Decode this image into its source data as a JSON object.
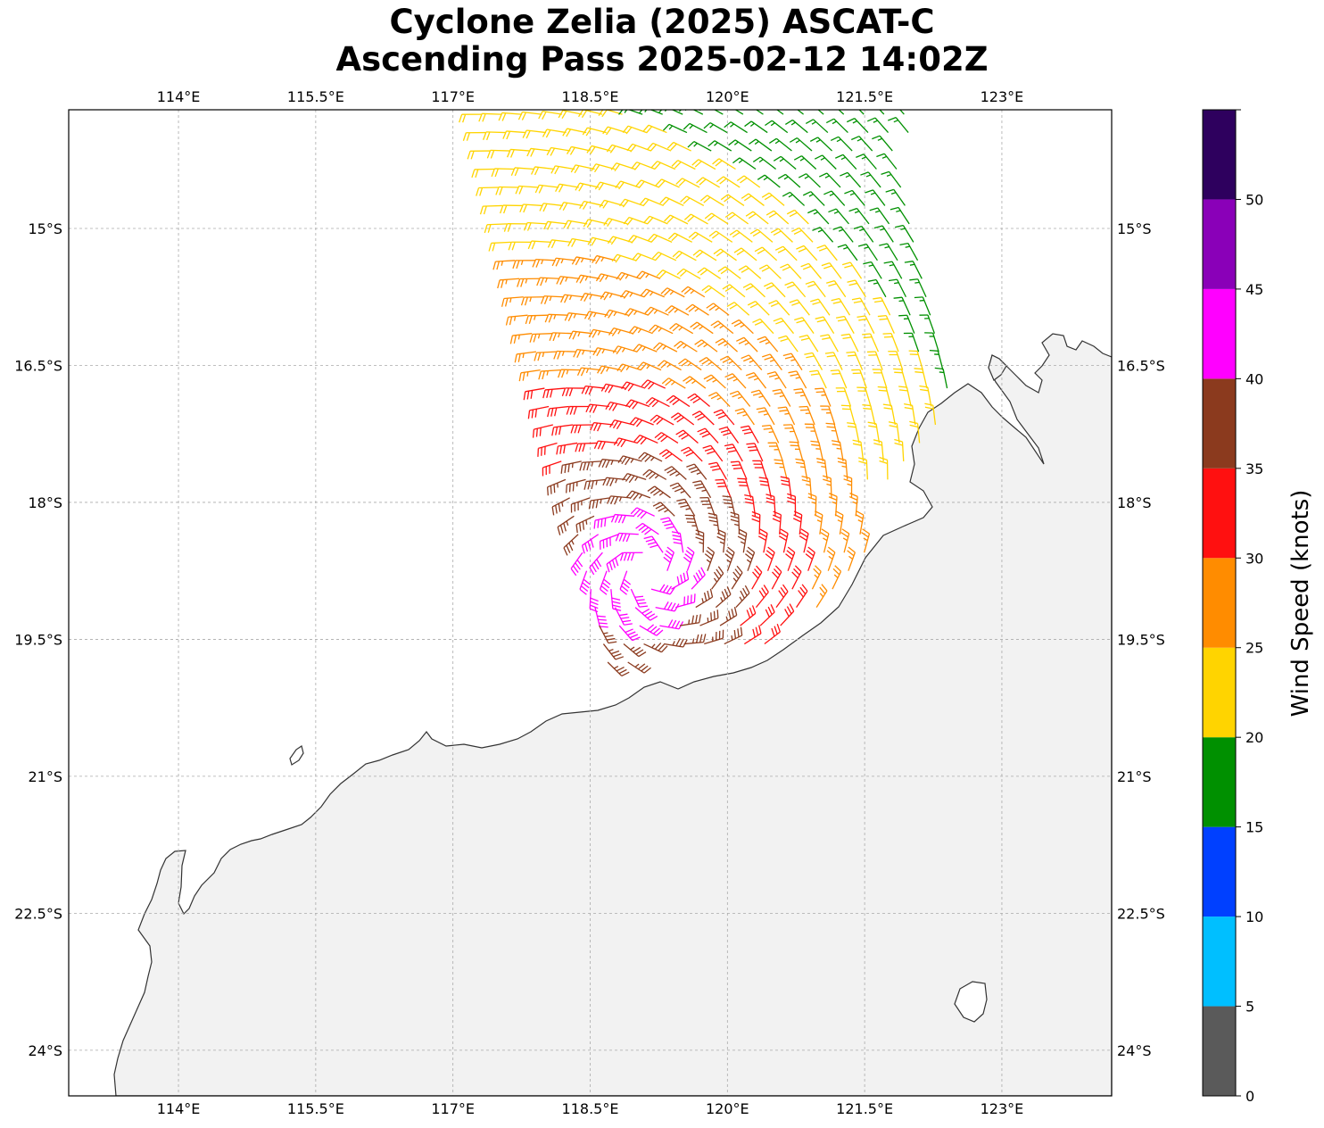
{
  "map": {
    "title_line1": "Cyclone Zelia (2025) ASCAT-C",
    "title_line2": "Ascending Pass 2025-02-12 14:02Z",
    "lon_range": [
      112.8,
      124.2
    ],
    "lat_range": [
      -24.5,
      -13.7
    ],
    "lon_ticks": [
      {
        "value": 114.0,
        "label": "114°E"
      },
      {
        "value": 115.5,
        "label": "115.5°E"
      },
      {
        "value": 117.0,
        "label": "117°E"
      },
      {
        "value": 118.5,
        "label": "118.5°E"
      },
      {
        "value": 120.0,
        "label": "120°E"
      },
      {
        "value": 121.5,
        "label": "121.5°E"
      },
      {
        "value": 123.0,
        "label": "123°E"
      }
    ],
    "lat_ticks": [
      {
        "value": -15.0,
        "label": "15°S"
      },
      {
        "value": -16.5,
        "label": "16.5°S"
      },
      {
        "value": -18.0,
        "label": "18°S"
      },
      {
        "value": -19.5,
        "label": "19.5°S"
      },
      {
        "value": -21.0,
        "label": "21°S"
      },
      {
        "value": -22.5,
        "label": "22.5°S"
      },
      {
        "value": -24.0,
        "label": "24°S"
      }
    ],
    "gridlines": true,
    "storm_center": {
      "lon": 119.15,
      "lat": -18.75
    },
    "land_color": "#f2f2f2",
    "coastline_color": "#333333"
  },
  "colorbar": {
    "label": "Wind Speed (knots)",
    "bounds": [
      0,
      5,
      10,
      15,
      20,
      25,
      30,
      35,
      40,
      45,
      50,
      55
    ],
    "tick_labels": [
      "0",
      "5",
      "10",
      "15",
      "20",
      "25",
      "30",
      "35",
      "40",
      "45",
      "50"
    ],
    "colors": [
      "#5a5a5a",
      "#00bfff",
      "#0040ff",
      "#009000",
      "#ffd400",
      "#ff8c00",
      "#ff1010",
      "#8b3a1e",
      "#ff00ff",
      "#8a00b8",
      "#2e005e"
    ]
  },
  "chart_data": {
    "type": "wind_barbs",
    "units": "knots",
    "swath": {
      "lon_min": 117.3,
      "lat_top": -13.7,
      "lat_bottom": -19.8
    }
  }
}
